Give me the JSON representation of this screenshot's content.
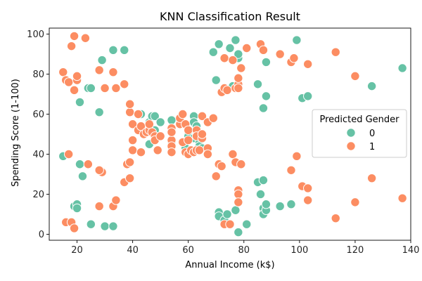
{
  "chart_data": {
    "type": "scatter",
    "title": "KNN Classification Result",
    "xlabel": "Annual Income (k$)",
    "ylabel": "Spending Score (1-100)",
    "xlim": [
      10,
      140
    ],
    "ylim": [
      -3,
      103
    ],
    "xticks": [
      20,
      40,
      60,
      80,
      100,
      120,
      140
    ],
    "yticks": [
      0,
      20,
      40,
      60,
      80,
      100
    ],
    "grid": false,
    "legend": {
      "title": "Predicted Gender",
      "position": "center-right"
    },
    "series": [
      {
        "name": "0",
        "color": "#66c2a5",
        "points": [
          [
            21,
            66
          ],
          [
            28,
            61
          ],
          [
            29,
            87
          ],
          [
            33,
            92
          ],
          [
            37,
            92
          ],
          [
            15,
            39
          ],
          [
            24,
            73
          ],
          [
            25,
            73
          ],
          [
            22,
            29
          ],
          [
            19,
            14
          ],
          [
            20,
            15
          ],
          [
            20,
            13
          ],
          [
            25,
            5
          ],
          [
            30,
            4
          ],
          [
            33,
            4
          ],
          [
            21,
            35
          ],
          [
            42,
            60
          ],
          [
            43,
            60
          ],
          [
            46,
            45
          ],
          [
            46,
            56
          ],
          [
            47,
            59
          ],
          [
            48,
            59
          ],
          [
            48,
            52
          ],
          [
            50,
            56
          ],
          [
            54,
            46
          ],
          [
            54,
            57
          ],
          [
            59,
            43
          ],
          [
            60,
            51
          ],
          [
            60,
            49
          ],
          [
            62,
            59
          ],
          [
            62,
            56
          ],
          [
            62,
            48
          ],
          [
            63,
            54
          ],
          [
            64,
            46
          ],
          [
            64,
            44
          ],
          [
            65,
            43
          ],
          [
            69,
            91
          ],
          [
            70,
            77
          ],
          [
            71,
            95
          ],
          [
            71,
            11
          ],
          [
            71,
            9
          ],
          [
            73,
            7
          ],
          [
            74,
            10
          ],
          [
            75,
            93
          ],
          [
            76,
            74
          ],
          [
            77,
            97
          ],
          [
            77,
            12
          ],
          [
            78,
            1
          ],
          [
            78,
            88
          ],
          [
            78,
            90
          ],
          [
            81,
            5
          ],
          [
            85,
            75
          ],
          [
            85,
            26
          ],
          [
            86,
            20
          ],
          [
            87,
            27
          ],
          [
            87,
            63
          ],
          [
            87,
            13
          ],
          [
            87,
            10
          ],
          [
            88,
            12
          ],
          [
            88,
            15
          ],
          [
            88,
            69
          ],
          [
            88,
            86
          ],
          [
            93,
            14
          ],
          [
            97,
            15
          ],
          [
            99,
            97
          ],
          [
            101,
            68
          ],
          [
            103,
            69
          ],
          [
            126,
            74
          ],
          [
            137,
            83
          ]
        ]
      },
      {
        "name": "1",
        "color": "#fc8d62",
        "points": [
          [
            15,
            81
          ],
          [
            16,
            6
          ],
          [
            16,
            77
          ],
          [
            17,
            40
          ],
          [
            17,
            76
          ],
          [
            18,
            6
          ],
          [
            18,
            94
          ],
          [
            19,
            3
          ],
          [
            19,
            72
          ],
          [
            19,
            99
          ],
          [
            20,
            77
          ],
          [
            20,
            79
          ],
          [
            23,
            98
          ],
          [
            24,
            35
          ],
          [
            28,
            14
          ],
          [
            28,
            82
          ],
          [
            29,
            31
          ],
          [
            30,
            73
          ],
          [
            28,
            32
          ],
          [
            33,
            81
          ],
          [
            33,
            14
          ],
          [
            34,
            73
          ],
          [
            34,
            17
          ],
          [
            37,
            26
          ],
          [
            38,
            35
          ],
          [
            37,
            75
          ],
          [
            39,
            61
          ],
          [
            39,
            65
          ],
          [
            39,
            36
          ],
          [
            39,
            28
          ],
          [
            40,
            55
          ],
          [
            40,
            47
          ],
          [
            40,
            42
          ],
          [
            42,
            52
          ],
          [
            42,
            60
          ],
          [
            43,
            54
          ],
          [
            43,
            41
          ],
          [
            44,
            50
          ],
          [
            45,
            51
          ],
          [
            46,
            52
          ],
          [
            46,
            55
          ],
          [
            47,
            51
          ],
          [
            48,
            49
          ],
          [
            48,
            47
          ],
          [
            49,
            42
          ],
          [
            50,
            49
          ],
          [
            54,
            53
          ],
          [
            54,
            47
          ],
          [
            54,
            44
          ],
          [
            54,
            41
          ],
          [
            54,
            51
          ],
          [
            57,
            55
          ],
          [
            57,
            58
          ],
          [
            58,
            60
          ],
          [
            58,
            46
          ],
          [
            59,
            55
          ],
          [
            59,
            41
          ],
          [
            60,
            52
          ],
          [
            60,
            47
          ],
          [
            60,
            40
          ],
          [
            61,
            42
          ],
          [
            62,
            41
          ],
          [
            63,
            42
          ],
          [
            63,
            52
          ],
          [
            63,
            49
          ],
          [
            64,
            42
          ],
          [
            65,
            48
          ],
          [
            65,
            50
          ],
          [
            65,
            59
          ],
          [
            67,
            43
          ],
          [
            67,
            40
          ],
          [
            67,
            56
          ],
          [
            69,
            58
          ],
          [
            70,
            29
          ],
          [
            71,
            35
          ],
          [
            72,
            71
          ],
          [
            72,
            34
          ],
          [
            73,
            5
          ],
          [
            73,
            88
          ],
          [
            73,
            73
          ],
          [
            74,
            72
          ],
          [
            75,
            5
          ],
          [
            76,
            40
          ],
          [
            76,
            87
          ],
          [
            77,
            73
          ],
          [
            77,
            36
          ],
          [
            78,
            75
          ],
          [
            78,
            78
          ],
          [
            78,
            73
          ],
          [
            78,
            22
          ],
          [
            78,
            20
          ],
          [
            78,
            16
          ],
          [
            79,
            83
          ],
          [
            79,
            35
          ],
          [
            81,
            93
          ],
          [
            86,
            95
          ],
          [
            87,
            92
          ],
          [
            93,
            90
          ],
          [
            97,
            86
          ],
          [
            98,
            88
          ],
          [
            97,
            32
          ],
          [
            99,
            39
          ],
          [
            101,
            24
          ],
          [
            103,
            23
          ],
          [
            103,
            17
          ],
          [
            103,
            85
          ],
          [
            113,
            91
          ],
          [
            113,
            8
          ],
          [
            120,
            79
          ],
          [
            120,
            16
          ],
          [
            126,
            28
          ],
          [
            137,
            18
          ]
        ]
      }
    ]
  }
}
